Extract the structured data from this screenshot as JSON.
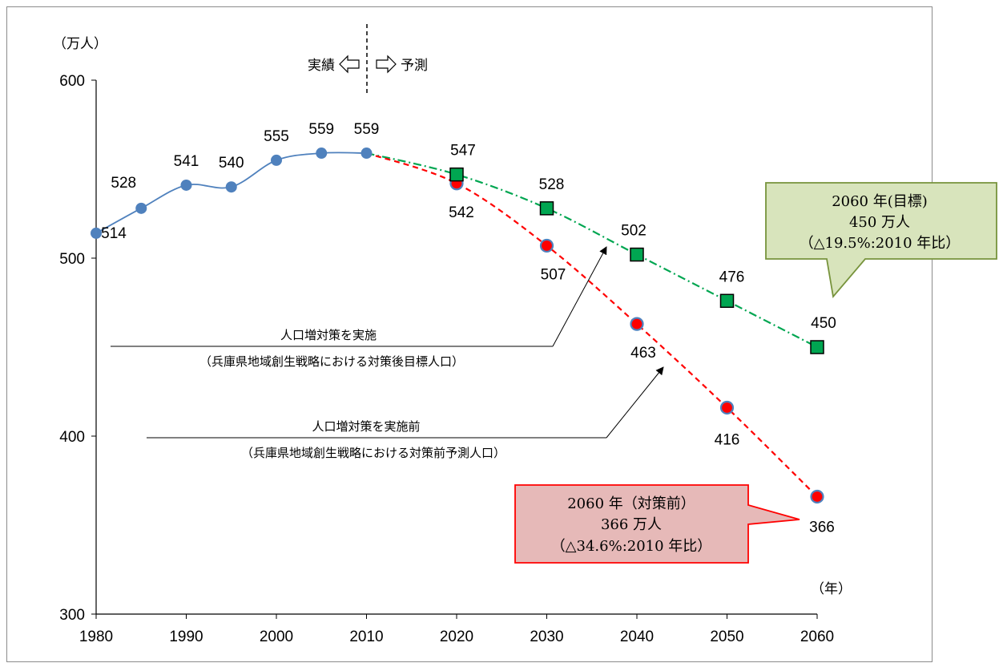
{
  "chart_data": {
    "type": "line",
    "y_unit": "（万人）",
    "x_unit": "（年）",
    "ylim": [
      300,
      600
    ],
    "yticks": [
      300,
      400,
      500,
      600
    ],
    "xlim": [
      1980,
      2060
    ],
    "xticks": [
      1980,
      1990,
      2000,
      2010,
      2020,
      2030,
      2040,
      2050,
      2060
    ],
    "divider": {
      "x": 2010,
      "left_label": "実績",
      "right_label": "予測"
    },
    "series": [
      {
        "key": "actual",
        "color": "#4f81bd",
        "x": [
          1980,
          1985,
          1990,
          1995,
          2000,
          2005,
          2010
        ],
        "values": [
          514,
          528,
          541,
          540,
          555,
          559,
          559
        ],
        "labels": [
          "514",
          "528",
          "541",
          "540",
          "555",
          "559",
          "559"
        ]
      },
      {
        "key": "target",
        "name": "人口増対策を実施",
        "name_detail": "（兵庫県地域創生戦略における対策後目標人口）",
        "color": "#00a651",
        "x": [
          2010,
          2020,
          2030,
          2040,
          2050,
          2060
        ],
        "values": [
          559,
          547,
          528,
          502,
          476,
          450
        ],
        "labels": [
          "",
          "547",
          "528",
          "502",
          "476",
          "450"
        ]
      },
      {
        "key": "baseline",
        "name": "人口増対策を実施前",
        "name_detail": "（兵庫県地域創生戦略における対策前予測人口）",
        "color": "#ff0000",
        "x": [
          2010,
          2020,
          2030,
          2040,
          2050,
          2060
        ],
        "values": [
          559,
          542,
          507,
          463,
          416,
          366
        ],
        "labels": [
          "",
          "542",
          "507",
          "463",
          "416",
          "366"
        ]
      }
    ],
    "callouts": {
      "target": {
        "line1": "2060 年(目標)",
        "line2": "450 万人",
        "line3": "（△19.5%:2010 年比）",
        "fill": "#d8e4bc",
        "stroke": "#77933c"
      },
      "baseline": {
        "line1": "2060 年（対策前）",
        "line2": "366 万人",
        "line3": "（△34.6%:2010 年比）",
        "fill": "#e6b9b8",
        "stroke": "#ff0000"
      }
    }
  }
}
